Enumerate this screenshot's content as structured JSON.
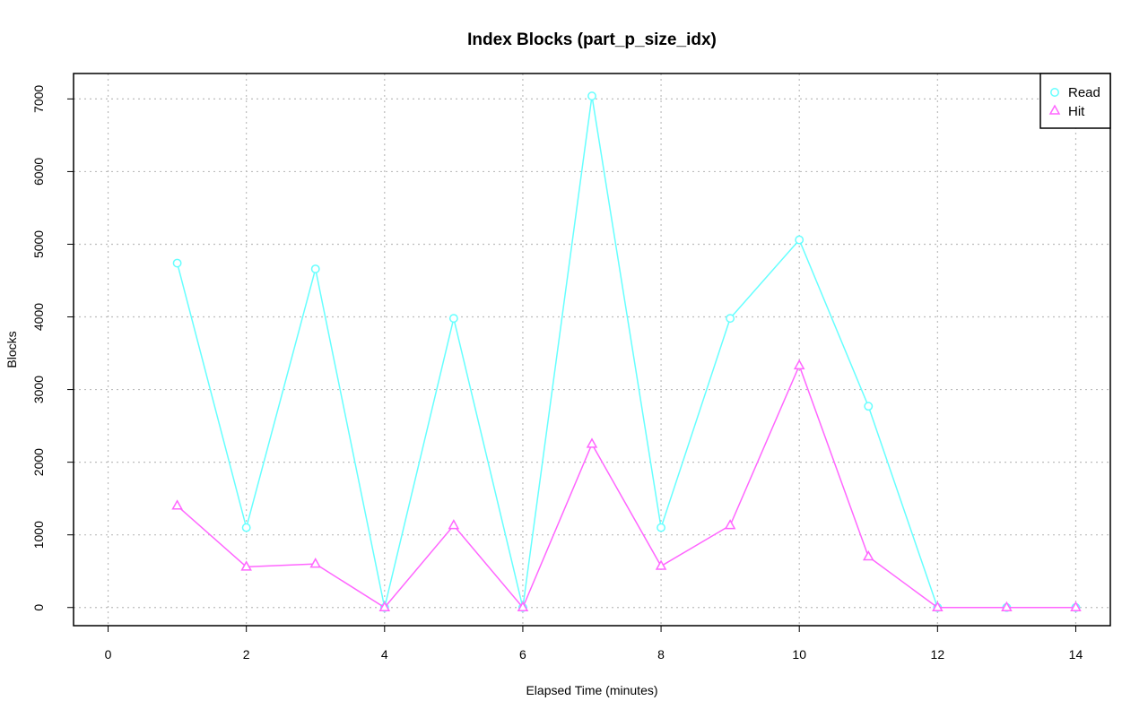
{
  "chart_data": {
    "type": "line",
    "title": "Index Blocks (part_p_size_idx)",
    "xlabel": "Elapsed Time (minutes)",
    "ylabel": "Blocks",
    "xlim": [
      -0.5,
      14.5
    ],
    "ylim": [
      -250,
      7350
    ],
    "xticks": [
      0,
      2,
      4,
      6,
      8,
      10,
      12,
      14
    ],
    "yticks": [
      0,
      1000,
      2000,
      3000,
      4000,
      5000,
      6000,
      7000
    ],
    "grid": true,
    "legend_position": "top-right",
    "x": [
      1,
      2,
      3,
      4,
      5,
      6,
      7,
      8,
      9,
      10,
      11,
      12,
      13,
      14
    ],
    "series": [
      {
        "name": "Read",
        "color": "#66ffff",
        "marker": "circle",
        "values": [
          4740,
          1100,
          4660,
          0,
          3980,
          0,
          7040,
          1100,
          3980,
          5060,
          2770,
          0,
          0,
          0
        ]
      },
      {
        "name": "Hit",
        "color": "#ff66ff",
        "marker": "triangle",
        "values": [
          1400,
          560,
          600,
          0,
          1130,
          0,
          2250,
          570,
          1130,
          3330,
          700,
          0,
          0,
          0
        ]
      }
    ]
  }
}
